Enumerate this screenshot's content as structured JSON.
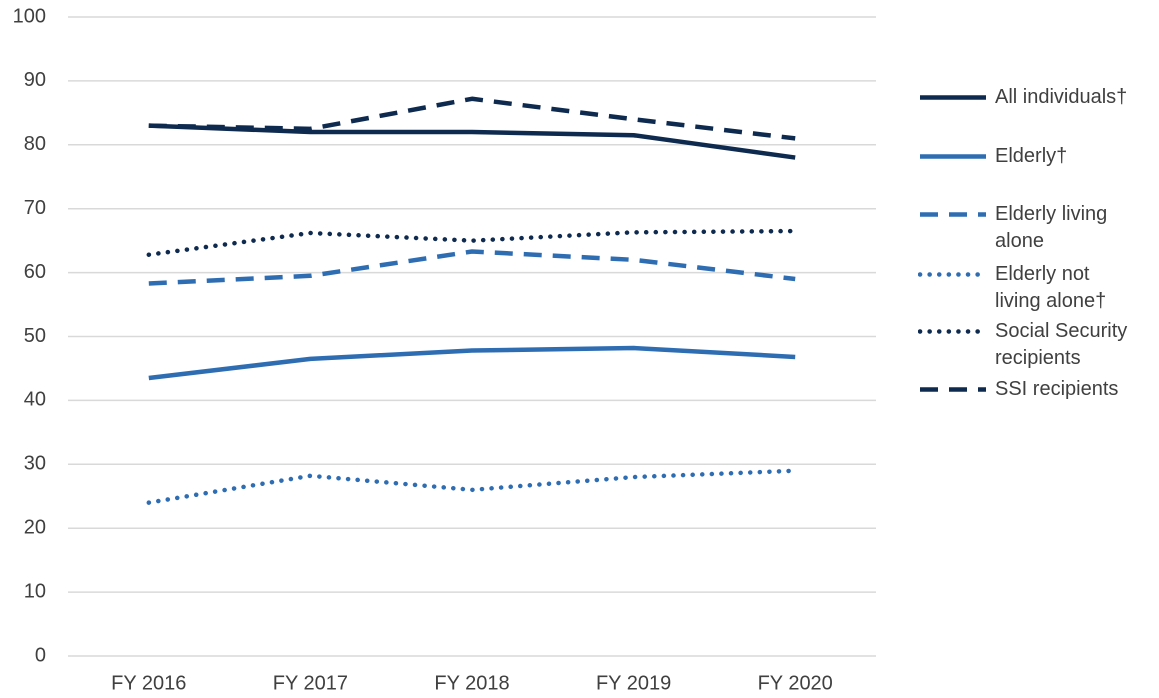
{
  "chart_data": {
    "type": "line",
    "categories": [
      "FY 2016",
      "FY 2017",
      "FY 2018",
      "FY 2019",
      "FY 2020"
    ],
    "ylim": [
      0,
      100
    ],
    "yticks": [
      0,
      10,
      20,
      30,
      40,
      50,
      60,
      70,
      80,
      90,
      100
    ],
    "grid": true,
    "legend": "right",
    "series": [
      {
        "name": "All individuals†",
        "color": "#0e2a4f",
        "style": "solid",
        "values": [
          83,
          82,
          82,
          81.5,
          78
        ]
      },
      {
        "name": "Elderly†",
        "color": "#2f6db3",
        "style": "solid",
        "values": [
          43.5,
          46.5,
          47.8,
          48.2,
          46.8
        ]
      },
      {
        "name": "Elderly living alone",
        "color": "#2f6db3",
        "style": "dashed",
        "values": [
          58.3,
          59.5,
          63.3,
          62,
          59
        ]
      },
      {
        "name": "Elderly not living alone†",
        "color": "#2f6db3",
        "style": "dotted",
        "values": [
          24,
          28.2,
          26,
          28,
          29
        ]
      },
      {
        "name": "Social Security recipients",
        "color": "#0e2a4f",
        "style": "dotted",
        "values": [
          62.8,
          66.2,
          65,
          66.3,
          66.5
        ]
      },
      {
        "name": "SSI recipients",
        "color": "#0e2a4f",
        "style": "dashed",
        "values": [
          83,
          82.5,
          87.2,
          84,
          81
        ]
      }
    ]
  }
}
